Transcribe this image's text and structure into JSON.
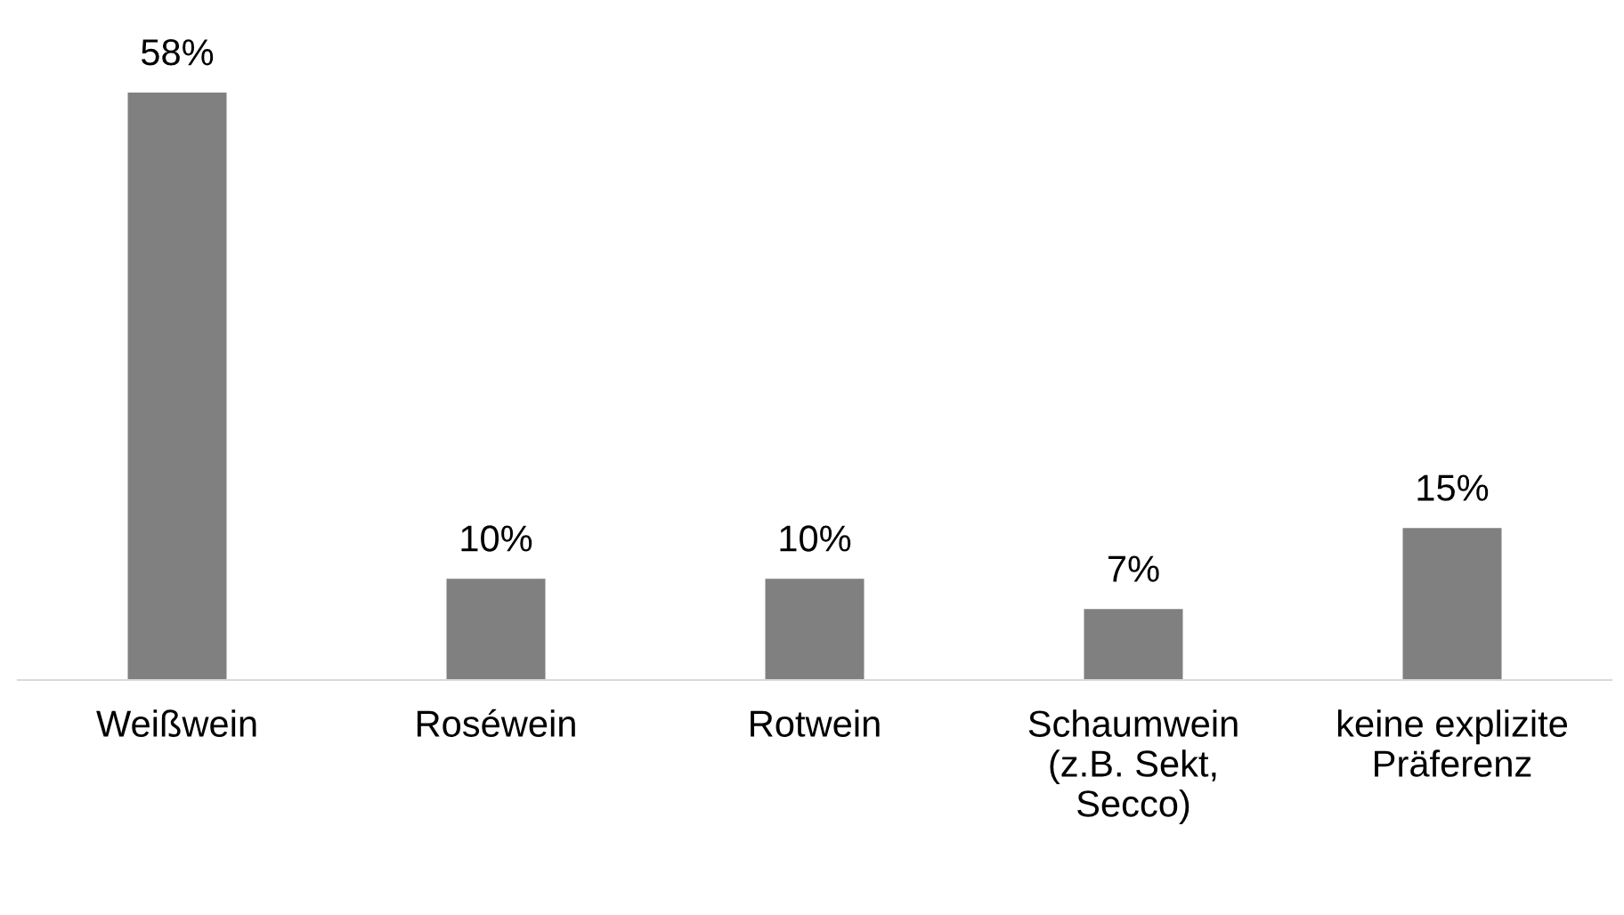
{
  "chart_data": {
    "type": "bar",
    "categories": [
      "Weißwein",
      "Roséwein",
      "Rotwein",
      "Schaumwein\n(z.B. Sekt,\nSecco)",
      "keine explizite\nPräferenz"
    ],
    "values": [
      58,
      10,
      10,
      7,
      15
    ],
    "value_labels": [
      "58%",
      "10%",
      "10%",
      "7%",
      "15%"
    ],
    "color": "#808080",
    "grid": false,
    "legend": false
  }
}
